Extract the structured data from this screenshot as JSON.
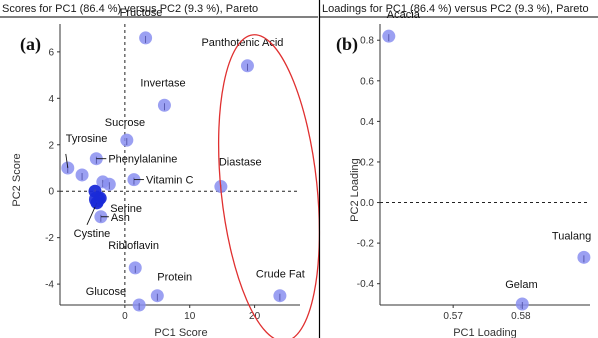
{
  "chart_data": [
    {
      "panel": "(a)",
      "type": "scatter",
      "title": "Scores for PC1 (86.4 %) versus PC2 (9.3 %), Pareto",
      "xlabel": "PC1 Score",
      "ylabel": "PC2 Score",
      "xlim": [
        -10,
        27
      ],
      "ylim": [
        -4.9,
        7.2
      ],
      "xticks": [
        0,
        10,
        20
      ],
      "yticks": [
        -4,
        -2,
        0,
        2,
        4,
        6
      ],
      "points": [
        {
          "label": "Fructose",
          "x": 3.2,
          "y": 6.6
        },
        {
          "label": "Panthotenic Acid",
          "x": 18.9,
          "y": 5.4
        },
        {
          "label": "Invertase",
          "x": 6.1,
          "y": 3.7
        },
        {
          "label": "Sucrose",
          "x": 0.3,
          "y": 2.2
        },
        {
          "label": "Tyrosine",
          "x": -8.8,
          "y": 1.0
        },
        {
          "label": "Phenylalanine",
          "x": -4.4,
          "y": 1.4
        },
        {
          "label": "",
          "x": -6.6,
          "y": 0.7
        },
        {
          "label": "",
          "x": -3.4,
          "y": 0.4
        },
        {
          "label": "",
          "x": -2.4,
          "y": 0.3
        },
        {
          "label": "",
          "x": -4.6,
          "y": 0.0
        },
        {
          "label": "Vitamin C",
          "x": 1.4,
          "y": 0.5
        },
        {
          "label": "Diastase",
          "x": 14.8,
          "y": 0.2
        },
        {
          "label": "Serine",
          "x": -3.8,
          "y": -0.3
        },
        {
          "label": "Cystine",
          "x": -4.3,
          "y": -0.5
        },
        {
          "label": "Ash",
          "x": -3.7,
          "y": -1.1
        },
        {
          "label": "Ribloflavin",
          "x": 1.6,
          "y": -3.3
        },
        {
          "label": "Protein",
          "x": 5.0,
          "y": -4.5
        },
        {
          "label": "Glucose",
          "x": 2.2,
          "y": -4.9
        },
        {
          "label": "Crude Fat",
          "x": 23.9,
          "y": -4.5
        }
      ]
    },
    {
      "panel": "(b)",
      "type": "scatter",
      "title": "Loadings for PC1 (86.4 %) versus PC2 (9.3 %), Pareto",
      "xlabel": "PC1 Loading",
      "ylabel": "PC2 Loading",
      "xlim": [
        0.5592,
        0.5902
      ],
      "ylim": [
        -0.505,
        0.88
      ],
      "xticks": [
        0.57,
        0.58
      ],
      "yticks": [
        -0.4,
        -0.2,
        0.0,
        0.2,
        0.4,
        0.6,
        0.8
      ],
      "points": [
        {
          "label": "Acacia",
          "x": 0.5605,
          "y": 0.82
        },
        {
          "label": "Tualang",
          "x": 0.5893,
          "y": -0.27
        },
        {
          "label": "Gelam",
          "x": 0.5802,
          "y": -0.5
        }
      ]
    }
  ],
  "colors": {
    "point": "#8a8ff0",
    "point_dense": "#1a2ad8",
    "ellipse": "#e03030",
    "axis": "#333333",
    "divider": "#000000"
  }
}
